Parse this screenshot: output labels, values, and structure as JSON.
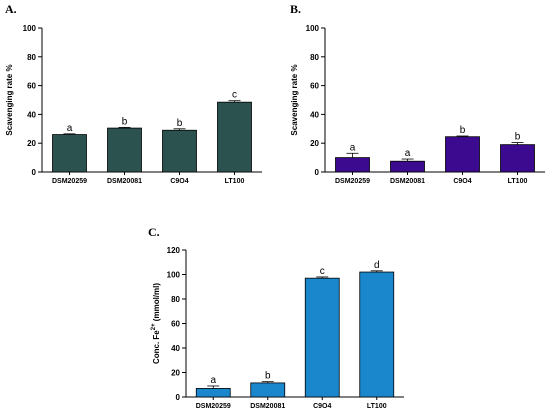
{
  "chart_data": [
    {
      "type": "bar",
      "panel_label": "A.",
      "ylabel": "Scavenging rate %",
      "ylim": [
        0,
        100
      ],
      "yticks": [
        "0",
        "20",
        "40",
        "60",
        "80",
        "100"
      ],
      "categories": [
        "DSM20259",
        "DSM20081",
        "C9O4",
        "LT100"
      ],
      "values": [
        26,
        30.5,
        29,
        48.5
      ],
      "errors": [
        0.5,
        0.5,
        1,
        1
      ],
      "significance": [
        "a",
        "b",
        "b",
        "c"
      ],
      "color": "#2b524f"
    },
    {
      "type": "bar",
      "panel_label": "B.",
      "ylabel": "Scavenging rate %",
      "ylim": [
        0,
        100
      ],
      "yticks": [
        "0",
        "20",
        "40",
        "60",
        "80",
        "100"
      ],
      "categories": [
        "DSM20259",
        "DSM20081",
        "C9O4",
        "LT100"
      ],
      "values": [
        10,
        7.5,
        24.5,
        19
      ],
      "errors": [
        3,
        1.5,
        0.5,
        1.5
      ],
      "significance": [
        "a",
        "a",
        "b",
        "b"
      ],
      "color": "#3b0a8f"
    },
    {
      "type": "bar",
      "panel_label": "C.",
      "ylabel_main": "Conc. Fe",
      "ylabel_sup": "2+",
      "ylabel_unit": " (mmol/ml)",
      "ylim": [
        0,
        120
      ],
      "yticks": [
        "0",
        "20",
        "40",
        "60",
        "80",
        "100",
        "120"
      ],
      "categories": [
        "DSM20259",
        "DSM20081",
        "C9O4",
        "LT100"
      ],
      "values": [
        7,
        11.5,
        97,
        102
      ],
      "errors": [
        2,
        1,
        1,
        1
      ],
      "significance": [
        "a",
        "b",
        "c",
        "d"
      ],
      "color": "#1a86cc"
    }
  ]
}
